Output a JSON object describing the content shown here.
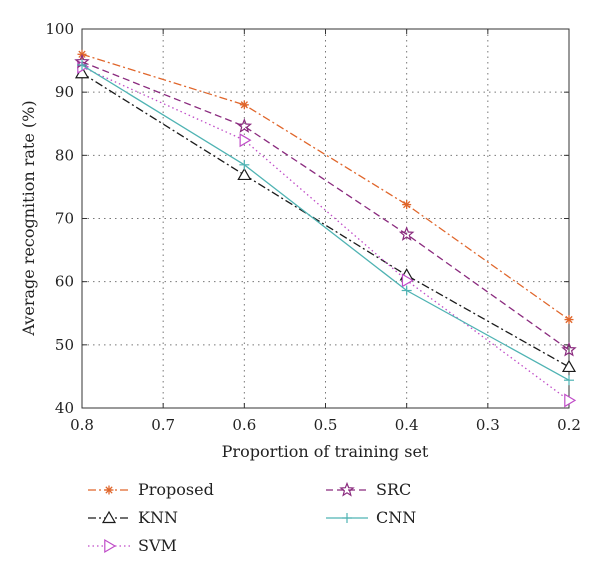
{
  "chart_data": {
    "type": "line",
    "xlabel": "Proportion of training set",
    "ylabel": "Average recognition rate (%)",
    "xlim": [
      0.8,
      0.2
    ],
    "ylim": [
      40,
      100
    ],
    "x_ticks": [
      "0.8",
      "0.7",
      "0.6",
      "0.5",
      "0.4",
      "0.3",
      "0.2"
    ],
    "y_ticks": [
      "40",
      "50",
      "60",
      "70",
      "80",
      "90",
      "100"
    ],
    "grid": true,
    "legend_placement": "below",
    "x": [
      0.8,
      0.6,
      0.4,
      0.2
    ],
    "series": [
      {
        "name": "Proposed",
        "values": [
          96.0,
          88.0,
          72.2,
          54.0
        ],
        "color": "#e0662b",
        "dash": "dashdot",
        "marker": "asterisk"
      },
      {
        "name": "KNN",
        "values": [
          93.0,
          76.9,
          61.0,
          46.5
        ],
        "color": "#1a1a1a",
        "dash": "dashdot",
        "marker": "triangle"
      },
      {
        "name": "SVM",
        "values": [
          94.0,
          82.4,
          60.2,
          41.2
        ],
        "color": "#c04cc8",
        "dash": "dotted",
        "marker": "triangle-right"
      },
      {
        "name": "SRC",
        "values": [
          94.8,
          84.6,
          67.5,
          49.2
        ],
        "color": "#8a2a7e",
        "dash": "dashed",
        "marker": "star"
      },
      {
        "name": "CNN",
        "values": [
          94.3,
          78.5,
          58.6,
          44.4
        ],
        "color": "#4fb3b3",
        "dash": "solid",
        "marker": "plus"
      }
    ]
  }
}
